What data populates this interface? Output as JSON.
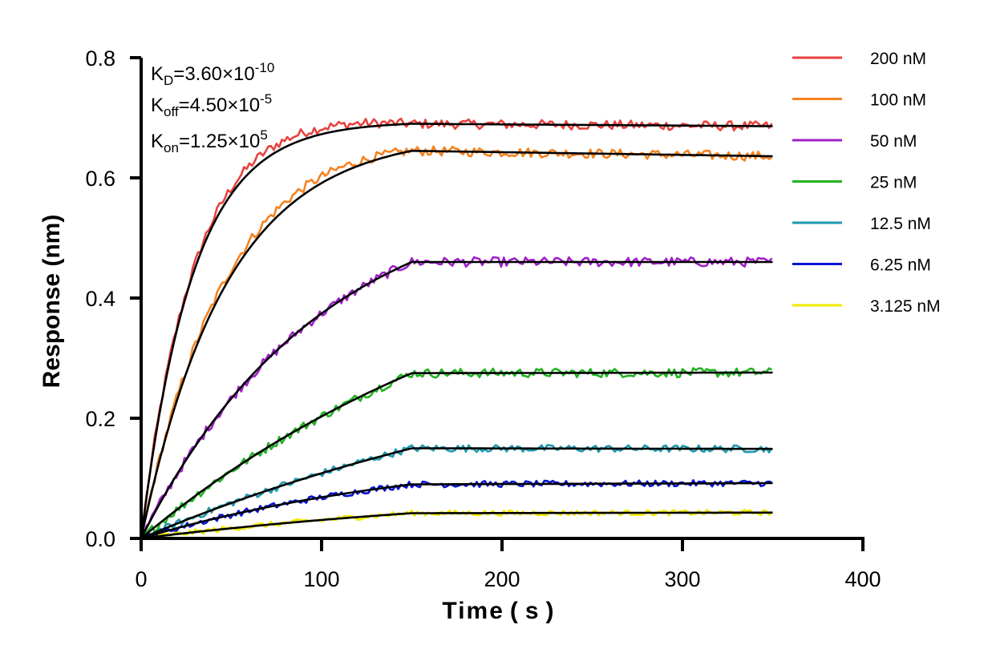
{
  "chart_data": {
    "type": "line",
    "title": "",
    "xlabel": "Time ( s )",
    "ylabel": "Response (nm)",
    "xlim": [
      0,
      400
    ],
    "ylim": [
      0,
      0.8
    ],
    "x_ticks": [
      "0",
      "100",
      "200",
      "300",
      "400"
    ],
    "y_ticks": [
      "0.0",
      "0.2",
      "0.4",
      "0.6",
      "0.8"
    ],
    "grid": false,
    "legend_position": "top-right",
    "association_end_s": 150,
    "dissociation_end_s": 350,
    "kinetics": {
      "kd": {
        "sym": "K",
        "sub": "D",
        "mantissa": "=3.60×10",
        "exp": "-10"
      },
      "koff": {
        "sym": "K",
        "sub": "off",
        "mantissa": "=4.50×10",
        "exp": "-5"
      },
      "kon": {
        "sym": "K",
        "sub": "on",
        "mantissa": "=1.25×10",
        "exp": "5"
      }
    },
    "fit_color": "#000000",
    "series": [
      {
        "name": "200 nM",
        "color": "#E8423F",
        "plateau": 0.69,
        "final": 0.686,
        "rate": 0.035
      },
      {
        "name": "100 nM",
        "color": "#F5831F",
        "plateau": 0.645,
        "final": 0.636,
        "rate": 0.021
      },
      {
        "name": "50 nM",
        "color": "#A020C8",
        "plateau": 0.46,
        "final": 0.46,
        "rate": 0.01
      },
      {
        "name": "25 nM",
        "color": "#22B422",
        "plateau": 0.275,
        "final": 0.276,
        "rate": 0.0045
      },
      {
        "name": "12.5 nM",
        "color": "#1E9AAF",
        "plateau": 0.15,
        "final": 0.149,
        "rate": 0.0035
      },
      {
        "name": "6.25 nM",
        "color": "#0A14D2",
        "plateau": 0.09,
        "final": 0.092,
        "rate": 0.006
      },
      {
        "name": "3.125 nM",
        "color": "#F2EA00",
        "plateau": 0.042,
        "final": 0.043,
        "rate": 0.004
      }
    ]
  }
}
